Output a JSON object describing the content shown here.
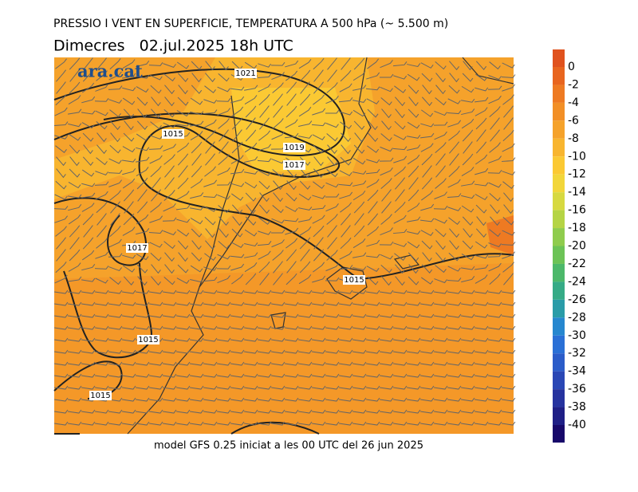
{
  "header": {
    "title": "PRESSIO I VENT EN SUPERFICIE, TEMPERATURA A 500 hPa (~ 5.500 m)",
    "subtitle": "Dimecres   02.jul.2025 18h UTC"
  },
  "logo": "ara.cat",
  "isobar_labels": [
    "1021",
    "1015",
    "1019",
    "1017",
    "1017",
    "1015",
    "1015",
    "1015"
  ],
  "colorbar": {
    "ticks": [
      0,
      -2,
      -4,
      -6,
      -8,
      -10,
      -12,
      -14,
      -16,
      -18,
      -20,
      -22,
      -24,
      -26,
      -28,
      -30,
      -32,
      -34,
      -36,
      -38,
      -40
    ],
    "colors": [
      "#e0521e",
      "#e8651f",
      "#ee7a22",
      "#f28f26",
      "#f5a22b",
      "#f8b52f",
      "#fbc933",
      "#f2d63a",
      "#d7d940",
      "#b5d445",
      "#8fcc4d",
      "#6cc356",
      "#4cb86a",
      "#36ab86",
      "#2a9ca8",
      "#2687cf",
      "#2a70d6",
      "#2b5cc9",
      "#2a47b5",
      "#26339f",
      "#1f1f86",
      "#17086a"
    ]
  },
  "footer": "model GFS 0.25 iniciat a les 00 UTC del 26 jun 2025"
}
